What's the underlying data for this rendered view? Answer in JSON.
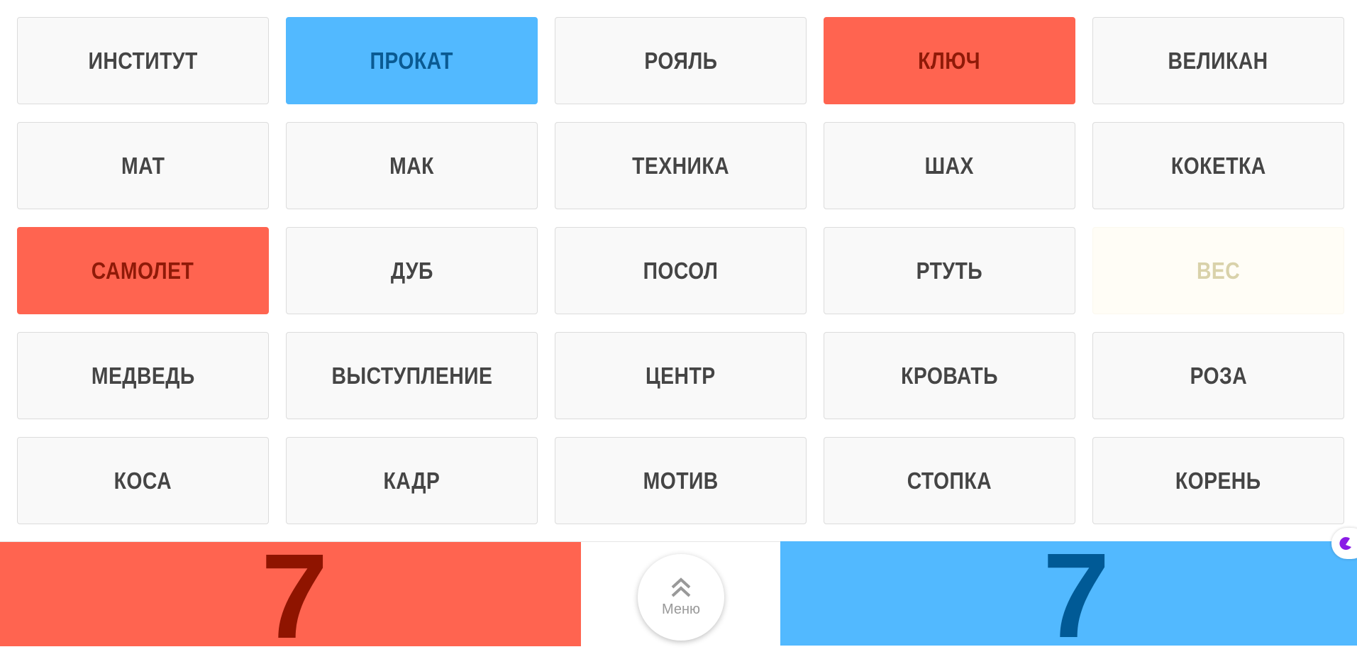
{
  "cards": [
    {
      "word": "ИНСТИТУТ",
      "state": "neutral"
    },
    {
      "word": "ПРОКАТ",
      "state": "blue"
    },
    {
      "word": "РОЯЛЬ",
      "state": "neutral"
    },
    {
      "word": "КЛЮЧ",
      "state": "red"
    },
    {
      "word": "ВЕЛИКАН",
      "state": "neutral"
    },
    {
      "word": "МАТ",
      "state": "neutral"
    },
    {
      "word": "МАК",
      "state": "neutral"
    },
    {
      "word": "ТЕХНИКА",
      "state": "neutral"
    },
    {
      "word": "ШАХ",
      "state": "neutral"
    },
    {
      "word": "КОКЕТКА",
      "state": "neutral"
    },
    {
      "word": "САМОЛЕТ",
      "state": "red"
    },
    {
      "word": "ДУБ",
      "state": "neutral"
    },
    {
      "word": "ПОСОЛ",
      "state": "neutral"
    },
    {
      "word": "РТУТЬ",
      "state": "neutral"
    },
    {
      "word": "ВЕС",
      "state": "revealed"
    },
    {
      "word": "МЕДВЕДЬ",
      "state": "neutral"
    },
    {
      "word": "ВЫСТУПЛЕНИЕ",
      "state": "neutral"
    },
    {
      "word": "ЦЕНТР",
      "state": "neutral"
    },
    {
      "word": "КРОВАТЬ",
      "state": "neutral"
    },
    {
      "word": "РОЗА",
      "state": "neutral"
    },
    {
      "word": "КОСА",
      "state": "neutral"
    },
    {
      "word": "КАДР",
      "state": "neutral"
    },
    {
      "word": "МОТИВ",
      "state": "neutral"
    },
    {
      "word": "СТОПКА",
      "state": "neutral"
    },
    {
      "word": "КОРЕНЬ",
      "state": "neutral"
    }
  ],
  "scores": {
    "red": "7",
    "blue": "7"
  },
  "menu": {
    "label": "Меню",
    "icon": "double-chevron-up-icon"
  },
  "colors": {
    "red": "#ff6450",
    "blue": "#52b9ff",
    "neutral": "#f9f9f9"
  }
}
